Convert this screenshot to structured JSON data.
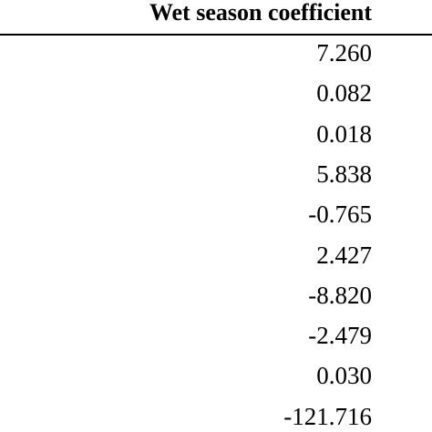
{
  "table": {
    "header": "Wet season coefficient",
    "rows": [
      "7.260",
      "0.082",
      "0.018",
      "5.838",
      "-0.765",
      "2.427",
      "-8.820",
      "-2.479",
      "0.030",
      "-121.716"
    ]
  }
}
